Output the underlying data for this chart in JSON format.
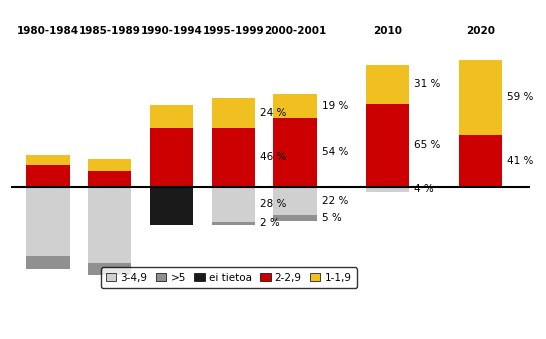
{
  "categories": [
    "1980-1984",
    "1985-1989",
    "1990-1994",
    "1995-1999",
    "2000-2001",
    "2010",
    "2020"
  ],
  "above_red": [
    17,
    12,
    46,
    46,
    54,
    65,
    41
  ],
  "above_yellow": [
    8,
    10,
    18,
    24,
    19,
    31,
    59
  ],
  "below_gray_light": [
    55,
    60,
    0,
    28,
    22,
    4,
    0
  ],
  "below_gray_dark": [
    10,
    10,
    0,
    2,
    5,
    0,
    0
  ],
  "below_black": [
    0,
    0,
    30,
    0,
    0,
    0,
    0
  ],
  "labels_above_red": [
    "",
    "",
    "",
    "46 %",
    "54 %",
    "65 %",
    "41 %"
  ],
  "labels_above_yellow": [
    "",
    "",
    "",
    "24 %",
    "19 %",
    "31 %",
    "59 %"
  ],
  "labels_below_light": [
    "",
    "",
    "",
    "28 %",
    "22 %",
    "4 %",
    ""
  ],
  "labels_below_dark": [
    "",
    "",
    "",
    "2 %",
    "5 %",
    "",
    ""
  ],
  "color_red": "#cc0000",
  "color_yellow": "#f0c020",
  "color_gray_light": "#d0d0d0",
  "color_gray_dark": "#909090",
  "color_black": "#1a1a1a",
  "background": "#ffffff",
  "legend_labels": [
    "3-4,9",
    ">5",
    "ei tietoa",
    "2-2,9",
    "1-1,9"
  ],
  "legend_colors": [
    "#d0d0d0",
    "#909090",
    "#1a1a1a",
    "#cc0000",
    "#f0c020"
  ]
}
